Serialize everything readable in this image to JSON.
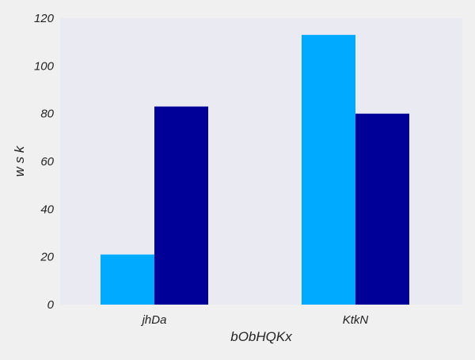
{
  "chart_data": {
    "type": "bar",
    "title": "",
    "xlabel": "bObHQKx",
    "ylabel": "w s k",
    "categories": [
      "jhDa",
      "KtkN"
    ],
    "series": [
      {
        "values": [
          21,
          113
        ],
        "color": "#00aaff"
      },
      {
        "values": [
          83,
          80
        ],
        "color": "#000099"
      }
    ],
    "ylim": [
      0,
      120
    ],
    "yticks": [
      0,
      20,
      40,
      60,
      80,
      100,
      120
    ],
    "grid": false,
    "legend": "none",
    "plot_background": "#eaeaf2",
    "page_background": "#f0f0f0"
  }
}
